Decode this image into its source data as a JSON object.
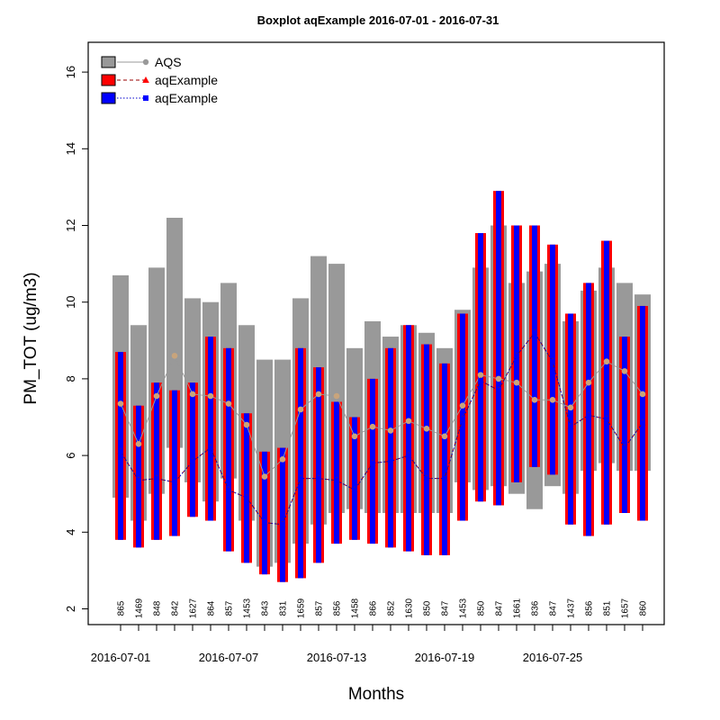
{
  "chart_data": {
    "type": "boxplot",
    "title": "Boxplot aqExample 2016-07-01 - 2016-07-31",
    "xlabel": "Months",
    "ylabel": "PM_TOT (ug/m3)",
    "ylim": [
      2,
      16
    ],
    "yticks": [
      2,
      4,
      6,
      8,
      10,
      12,
      14,
      16
    ],
    "x": [
      "2016-07-01",
      "2016-07-02",
      "2016-07-03",
      "2016-07-04",
      "2016-07-05",
      "2016-07-06",
      "2016-07-07",
      "2016-07-08",
      "2016-07-09",
      "2016-07-10",
      "2016-07-11",
      "2016-07-12",
      "2016-07-13",
      "2016-07-14",
      "2016-07-15",
      "2016-07-16",
      "2016-07-17",
      "2016-07-18",
      "2016-07-19",
      "2016-07-20",
      "2016-07-21",
      "2016-07-22",
      "2016-07-23",
      "2016-07-24",
      "2016-07-25",
      "2016-07-26",
      "2016-07-27",
      "2016-07-28",
      "2016-07-29",
      "2016-07-30"
    ],
    "xtick_labels": [
      "2016-07-01",
      "2016-07-07",
      "2016-07-13",
      "2016-07-19",
      "2016-07-25"
    ],
    "xtick_at": [
      "2016-07-01",
      "2016-07-07",
      "2016-07-13",
      "2016-07-19",
      "2016-07-25"
    ],
    "counts": [
      "865",
      "1469",
      "848",
      "842",
      "1627",
      "864",
      "857",
      "1453",
      "843",
      "831",
      "1659",
      "857",
      "856",
      "1458",
      "866",
      "852",
      "1630",
      "850",
      "847",
      "1453",
      "850",
      "847",
      "1661",
      "836",
      "847",
      "1437",
      "856",
      "851",
      "1657",
      "860"
    ],
    "series": [
      {
        "name": "AQS",
        "color": "#999999",
        "line": "solid",
        "marker": "circle",
        "marker_color": "#999999",
        "box_low": [
          4.9,
          4.3,
          5.0,
          6.2,
          5.3,
          4.8,
          5.4,
          4.3,
          3.1,
          3.2,
          3.7,
          4.2,
          4.5,
          4.6,
          4.5,
          4.5,
          4.5,
          4.5,
          4.5,
          5.3,
          5.1,
          5.2,
          5.0,
          4.6,
          5.2,
          5.0,
          5.6,
          5.8,
          5.6,
          5.6
        ],
        "box_high": [
          10.7,
          9.4,
          10.9,
          12.2,
          10.1,
          10.0,
          10.5,
          9.4,
          8.5,
          8.5,
          10.1,
          11.2,
          11.0,
          8.8,
          9.5,
          9.1,
          9.4,
          9.2,
          8.8,
          9.8,
          10.9,
          12.0,
          10.5,
          10.8,
          11.0,
          9.5,
          10.3,
          10.9,
          10.5,
          10.2
        ],
        "median": [
          7.35,
          6.3,
          7.55,
          8.6,
          7.6,
          7.55,
          7.35,
          6.8,
          5.45,
          5.9,
          7.2,
          7.6,
          7.55,
          6.5,
          6.75,
          6.65,
          6.9,
          6.7,
          6.5,
          7.3,
          8.1,
          8.0,
          7.9,
          7.45,
          7.45,
          7.25,
          7.9,
          8.45,
          8.2,
          7.6
        ]
      },
      {
        "name": "aqExample",
        "color": "#ff0000",
        "line": "dashed",
        "marker": "triangle",
        "marker_color": "#ff0000",
        "line_color": "#990000",
        "box_low": [
          3.8,
          3.6,
          3.8,
          3.9,
          4.4,
          4.3,
          3.5,
          3.2,
          2.9,
          2.7,
          2.8,
          3.2,
          3.7,
          3.8,
          3.7,
          3.6,
          3.5,
          3.4,
          3.4,
          4.3,
          4.8,
          4.7,
          5.3,
          5.7,
          5.5,
          4.2,
          3.9,
          4.2,
          4.5,
          4.3
        ],
        "box_high": [
          8.7,
          7.3,
          7.9,
          7.7,
          7.9,
          9.1,
          8.8,
          7.1,
          6.1,
          6.2,
          8.8,
          8.3,
          7.4,
          7.0,
          8.0,
          8.8,
          9.4,
          8.9,
          8.4,
          9.7,
          11.8,
          12.9,
          12.0,
          12.0,
          11.5,
          9.7,
          10.5,
          11.6,
          9.1,
          9.9
        ],
        "median": [
          6.1,
          5.35,
          5.4,
          5.3,
          5.85,
          6.2,
          5.1,
          4.9,
          4.25,
          4.2,
          5.4,
          5.4,
          5.35,
          5.1,
          5.8,
          5.85,
          6.0,
          5.4,
          5.4,
          6.95,
          7.95,
          7.7,
          8.6,
          9.2,
          8.45,
          6.75,
          7.05,
          6.95,
          6.2,
          6.85
        ]
      },
      {
        "name": "aqExample",
        "color": "#0000ff",
        "line": "dotted",
        "marker": "square",
        "marker_color": "#0000ff",
        "line_color": "#0000cc",
        "box_low": [
          3.8,
          3.6,
          3.8,
          3.9,
          4.4,
          4.3,
          3.5,
          3.2,
          2.9,
          2.7,
          2.8,
          3.2,
          3.7,
          3.8,
          3.7,
          3.6,
          3.5,
          3.4,
          3.4,
          4.3,
          4.8,
          4.7,
          5.3,
          5.7,
          5.5,
          4.2,
          3.9,
          4.2,
          4.5,
          4.3
        ],
        "box_high": [
          8.7,
          7.3,
          7.9,
          7.7,
          7.9,
          9.1,
          8.8,
          7.1,
          6.1,
          6.2,
          8.8,
          8.3,
          7.4,
          7.0,
          8.0,
          8.8,
          9.4,
          8.9,
          8.4,
          9.7,
          11.8,
          12.9,
          12.0,
          12.0,
          11.5,
          9.7,
          10.5,
          11.6,
          9.1,
          9.9
        ],
        "median": [
          6.1,
          5.35,
          5.4,
          5.3,
          5.85,
          6.2,
          5.1,
          4.9,
          4.25,
          4.2,
          5.4,
          5.4,
          5.35,
          5.1,
          5.8,
          5.85,
          6.0,
          5.4,
          5.4,
          6.95,
          7.95,
          7.7,
          8.6,
          9.2,
          8.45,
          6.75,
          7.05,
          6.95,
          6.2,
          6.85
        ]
      }
    ],
    "legend": {
      "position": "top-left",
      "entries": [
        "AQS",
        "aqExample",
        "aqExample"
      ]
    }
  }
}
